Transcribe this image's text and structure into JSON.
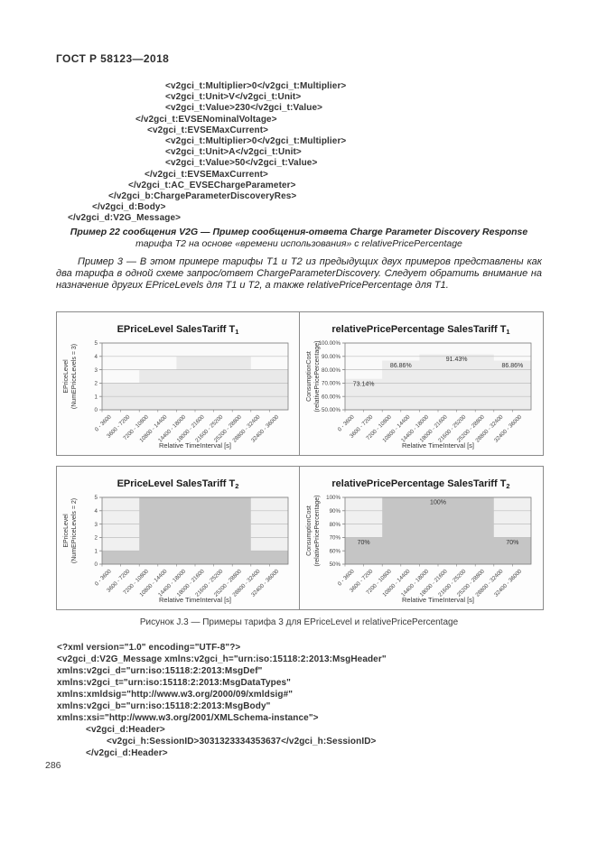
{
  "page": {
    "header": "ГОСТ Р 58123—2018",
    "page_number": "286"
  },
  "xml_top": {
    "lines": [
      {
        "text": "<v2gci_t:Multiplier>0</v2gci_t:Multiplier>",
        "indent": 108
      },
      {
        "text": "<v2gci_t:Unit>V</v2gci_t:Unit>",
        "indent": 108
      },
      {
        "text": "<v2gci_t:Value>230</v2gci_t:Value>",
        "indent": 108
      },
      {
        "text": "</v2gci_t:EVSENominalVoltage>",
        "indent": 75
      },
      {
        "text": "<v2gci_t:EVSEMaxCurrent>",
        "indent": 88
      },
      {
        "text": "<v2gci_t:Multiplier>0</v2gci_t:Multiplier>",
        "indent": 108
      },
      {
        "text": "<v2gci_t:Unit>A</v2gci_t:Unit>",
        "indent": 108
      },
      {
        "text": "<v2gci_t:Value>50</v2gci_t:Value>",
        "indent": 108
      },
      {
        "text": "</v2gci_t:EVSEMaxCurrent>",
        "indent": 85
      },
      {
        "text": "</v2gci_t:AC_EVSEChargeParameter>",
        "indent": 67
      },
      {
        "text": "</v2gci_b:ChargeParameterDiscoveryRes>",
        "indent": 45
      },
      {
        "text": "</v2gci_d:Body>",
        "indent": 27
      },
      {
        "text": "</v2gci_d:V2G_Message>",
        "indent": 0
      }
    ]
  },
  "example_caption": {
    "line1": "Пример 22 сообщения V2G — Пример сообщения-ответа Charge Parameter Discovery Response",
    "line2": "тарифа Т2 на основе «времени использования» с relativePricePercentage"
  },
  "paragraph": "Пример 3 — В этом примере тарифы Т1 и Т2 из предыдущих двух примеров представлены как два тарифа в одной схеме запрос/ответ ChargeParameterDiscovery. Следует обратить внимание на назначение других EPriceLevels для Т1 и Т2, а также relativePricePercentage для Т1.",
  "figure_caption": "Рисунок J.3 — Примеры тарифа 3 для EPriceLevel и relativePricePercentage",
  "xml_bottom": {
    "lines": [
      {
        "text": "<?xml version=\"1.0\" encoding=\"UTF-8\"?>",
        "indent": 0
      },
      {
        "text": "<v2gci_d:V2G_Message xmlns:v2gci_h=\"urn:iso:15118:2:2013:MsgHeader\"",
        "indent": 0
      },
      {
        "text": "xmlns:v2gci_d=\"urn:iso:15118:2:2013:MsgDef\"",
        "indent": 0
      },
      {
        "text": "xmlns:v2gci_t=\"urn:iso:15118:2:2013:MsgDataTypes\"",
        "indent": 0
      },
      {
        "text": "xmlns:xmldsig=\"http://www.w3.org/2000/09/xmldsig#\"",
        "indent": 0
      },
      {
        "text": "xmlns:v2gci_b=\"urn:iso:15118:2:2013:MsgBody\"",
        "indent": 0
      },
      {
        "text": "xmlns:xsi=\"http://www.w3.org/2001/XMLSchema-instance\">",
        "indent": 0
      },
      {
        "text": "<v2gci_d:Header>",
        "indent": 32
      },
      {
        "text": "<v2gci_h:SessionID>3031323334353637</v2gci_h:SessionID>",
        "indent": 55
      },
      {
        "text": "</v2gci_d:Header>",
        "indent": 32
      }
    ]
  },
  "chart_data": [
    {
      "type": "area",
      "title_main": "EPriceLevel SalesTariff T",
      "title_sub": "1",
      "ylabel_line1": "EPriceLevel",
      "ylabel_line2": "(NumEPriceLevels = 3)",
      "xlabel": "Relative TimeInterval [s]",
      "categories": [
        "0 - 3600",
        "3600 - 7200",
        "7200 - 10800",
        "10800 - 14400",
        "14400 - 18000",
        "18000 - 21600",
        "21600 - 25200",
        "25200 - 28800",
        "28800 - 32400",
        "32400 - 36000"
      ],
      "values": [
        2,
        2,
        3,
        3,
        4,
        4,
        4,
        4,
        3,
        3
      ],
      "ylim": [
        0,
        5
      ],
      "yticks": [
        0,
        1,
        2,
        3,
        4,
        5
      ],
      "ytick_labels": [
        "0",
        "1",
        "2",
        "3",
        "4",
        "5"
      ],
      "fill": "#e9e9e9",
      "plot_bg": "#fafafa",
      "grid": true,
      "data_labels": []
    },
    {
      "type": "area",
      "title_main": "relativePricePercentage SalesTariff T",
      "title_sub": "1",
      "ylabel_line1": "ConsumptionCost",
      "ylabel_line2": "(relativePricePercentage)",
      "xlabel": "Relative TimeInterval [s]",
      "categories": [
        "0 - 3600",
        "3600 - 7200",
        "7200 - 10800",
        "10800 - 14400",
        "14400 - 18000",
        "18000 - 21600",
        "21600 - 25200",
        "25200 - 28800",
        "28800 - 32400",
        "32400 - 36000"
      ],
      "values": [
        73.14,
        73.14,
        86.86,
        86.86,
        91.43,
        91.43,
        91.43,
        91.43,
        86.86,
        86.86
      ],
      "ylim": [
        50,
        100
      ],
      "yticks": [
        50,
        60,
        70,
        80,
        90,
        100
      ],
      "ytick_labels": [
        "50.00%",
        "60.00%",
        "70.00%",
        "80.00%",
        "90.00%",
        "100.00%"
      ],
      "fill": "#ececec",
      "plot_bg": "#fafafa",
      "grid": true,
      "data_labels": [
        {
          "text": "73.14%",
          "from": 0,
          "to": 2,
          "value": 73.14
        },
        {
          "text": "86.86%",
          "from": 2,
          "to": 4,
          "value": 86.86
        },
        {
          "text": "91.43%",
          "from": 4,
          "to": 8,
          "value": 91.43
        },
        {
          "text": "86.86%",
          "from": 8,
          "to": 10,
          "value": 86.86
        }
      ]
    },
    {
      "type": "area",
      "title_main": "EPriceLevel SalesTariff T",
      "title_sub": "2",
      "ylabel_line1": "EPriceLevel",
      "ylabel_line2": "(NumEPriceLevels = 2)",
      "xlabel": "Relative TimeInterval [s]",
      "categories": [
        "0 - 3600",
        "3600 - 7200",
        "7200 - 10800",
        "10800 - 14400",
        "14400 - 18000",
        "18000 - 21600",
        "21600 - 25200",
        "25200 - 28800",
        "28800 - 32400",
        "32400 - 36000"
      ],
      "values": [
        1,
        1,
        5,
        5,
        5,
        5,
        5,
        5,
        1,
        1
      ],
      "ylim": [
        0,
        5
      ],
      "yticks": [
        0,
        1,
        2,
        3,
        4,
        5
      ],
      "ytick_labels": [
        "0",
        "1",
        "2",
        "3",
        "4",
        "5"
      ],
      "fill": "#c5c5c5",
      "plot_bg": "#f0f0f0",
      "grid": true,
      "data_labels": []
    },
    {
      "type": "area",
      "title_main": "relativePricePercentage SalesTariff T",
      "title_sub": "2",
      "ylabel_line1": "ConsumptionCost",
      "ylabel_line2": "(relativePricePercentage)",
      "xlabel": "Relative TimeInterval [s]",
      "categories": [
        "0 - 3600",
        "3600 - 7200",
        "7200 - 10800",
        "10800 - 14400",
        "14400 - 18000",
        "18000 - 21600",
        "21600 - 25200",
        "25200 - 28800",
        "28800 - 32400",
        "32400 - 36000"
      ],
      "values": [
        70,
        70,
        100,
        100,
        100,
        100,
        100,
        100,
        70,
        70
      ],
      "ylim": [
        50,
        100
      ],
      "yticks": [
        50,
        60,
        70,
        80,
        90,
        100
      ],
      "ytick_labels": [
        "50%",
        "60%",
        "70%",
        "80%",
        "90%",
        "100%"
      ],
      "fill": "#c5c5c5",
      "plot_bg": "#f0f0f0",
      "grid": true,
      "data_labels": [
        {
          "text": "70%",
          "from": 0,
          "to": 2,
          "value": 70
        },
        {
          "text": "100%",
          "from": 2,
          "to": 8,
          "value": 100
        },
        {
          "text": "70%",
          "from": 8,
          "to": 10,
          "value": 70
        }
      ]
    }
  ],
  "colors": {
    "chart_border": "#8a8a8a",
    "grid_line": "#bdbdbd",
    "axis_line": "#7f7f7f",
    "dark_fill": "#c5c5c5",
    "light_fill": "#e9e9e9",
    "text": "#1f1f1f"
  }
}
